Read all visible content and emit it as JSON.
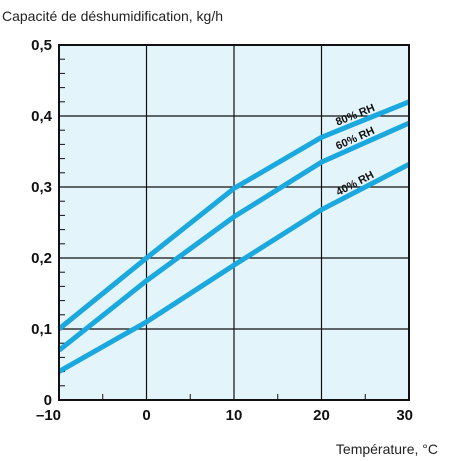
{
  "chart_data": {
    "type": "line",
    "ylabel": "Capacité de déshumidification, kg/h",
    "xlabel": "Température, °C",
    "xlim": [
      -10,
      30
    ],
    "ylim": [
      0,
      0.5
    ],
    "x_ticks": [
      "–10",
      "0",
      "10",
      "20",
      "30"
    ],
    "x_tick_values": [
      -10,
      0,
      10,
      20,
      30
    ],
    "y_ticks": [
      "0",
      "0,1",
      "0,2",
      "0,3",
      "0,4",
      "0,5"
    ],
    "y_tick_values": [
      0,
      0.1,
      0.2,
      0.3,
      0.4,
      0.5
    ],
    "grid": true,
    "colors": {
      "plot_background": "#e3f4fb",
      "line": "#1aa8de",
      "grid": "#111111"
    },
    "series": [
      {
        "name": "80% RH",
        "x": [
          -10,
          0,
          10,
          20,
          30
        ],
        "y": [
          0.1,
          0.2,
          0.298,
          0.37,
          0.42
        ]
      },
      {
        "name": "60% RH",
        "x": [
          -10,
          0,
          10,
          20,
          30
        ],
        "y": [
          0.07,
          0.168,
          0.258,
          0.335,
          0.39
        ]
      },
      {
        "name": "40% RH",
        "x": [
          -10,
          0,
          10,
          20,
          30
        ],
        "y": [
          0.04,
          0.11,
          0.19,
          0.268,
          0.332
        ]
      }
    ]
  }
}
